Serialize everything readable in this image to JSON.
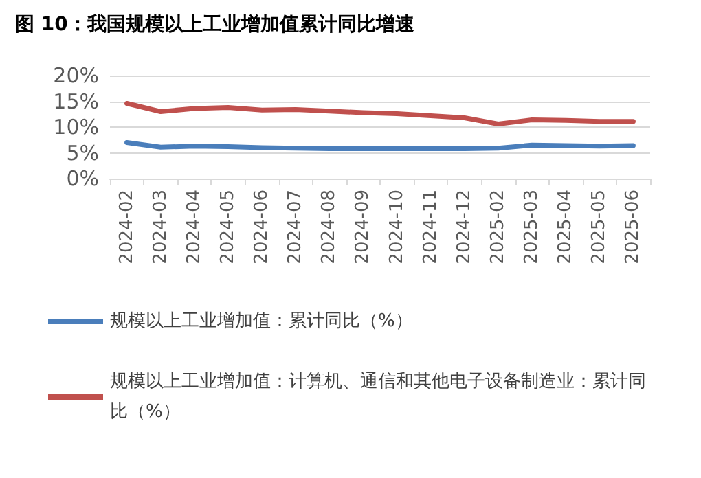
{
  "chart_data": {
    "type": "line",
    "title": "图 10：我国规模以上工业增加值累计同比增速",
    "categories": [
      "2024-02",
      "2024-03",
      "2024-04",
      "2024-05",
      "2024-06",
      "2024-07",
      "2024-08",
      "2024-09",
      "2024-10",
      "2024-11",
      "2024-12",
      "2025-02",
      "2025-03",
      "2025-04",
      "2025-05",
      "2025-06"
    ],
    "series": [
      {
        "name": "规模以上工业增加值：累计同比（%）",
        "color": "#4a7ebb",
        "values": [
          7.0,
          6.1,
          6.3,
          6.2,
          6.0,
          5.9,
          5.8,
          5.8,
          5.8,
          5.8,
          5.8,
          5.9,
          6.5,
          6.4,
          6.3,
          6.4
        ]
      },
      {
        "name": "规模以上工业增加值：计算机、通信和其他电子设备制造业：累计同比（%）",
        "color": "#c0504d",
        "values": [
          14.6,
          13.0,
          13.6,
          13.8,
          13.3,
          13.4,
          13.1,
          12.8,
          12.6,
          12.2,
          11.8,
          10.6,
          11.4,
          11.3,
          11.1,
          11.1
        ]
      }
    ],
    "ylim": [
      0,
      20
    ],
    "yticks": [
      {
        "value": 0,
        "label": "0%"
      },
      {
        "value": 5,
        "label": "5%"
      },
      {
        "value": 10,
        "label": "10%"
      },
      {
        "value": 15,
        "label": "15%"
      },
      {
        "value": 20,
        "label": "20%"
      }
    ],
    "grid": "y",
    "legend": "bottom",
    "marker": "none",
    "line_style": "solid"
  }
}
